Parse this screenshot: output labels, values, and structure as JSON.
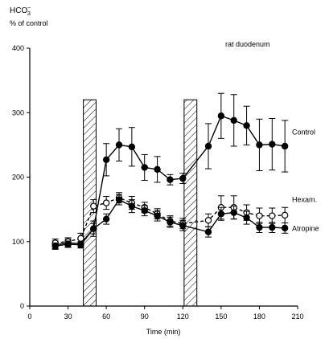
{
  "chart_data": {
    "type": "line",
    "ylabel_main": "HCO",
    "ylabel_sub": "3",
    "ylabel_sup": "−",
    "ylabel_line2": "% of control",
    "xlabel": "Time (min)",
    "annotation": "rat duodenum",
    "xlim": [
      0,
      210
    ],
    "ylim": [
      0,
      400
    ],
    "x_ticks": [
      0,
      30,
      60,
      90,
      120,
      150,
      180,
      210
    ],
    "y_ticks": [
      0,
      100,
      200,
      300,
      400
    ],
    "x_tick_labels": [
      "0",
      "30",
      "60",
      "90",
      "120",
      "150",
      "180",
      "210"
    ],
    "y_tick_labels": [
      "0",
      "100",
      "200",
      "300",
      "400"
    ],
    "shaded_intervals": [
      [
        42,
        52
      ],
      [
        121,
        131
      ]
    ],
    "series": [
      {
        "name": "Control",
        "marker": "filled",
        "line": "solid",
        "x": [
          20,
          30,
          40,
          50,
          60,
          70,
          80,
          90,
          100,
          110,
          120,
          140,
          150,
          160,
          170,
          180,
          190,
          200
        ],
        "y": [
          95,
          98,
          97,
          120,
          227,
          250,
          247,
          215,
          212,
          196,
          198,
          248,
          295,
          288,
          280,
          250,
          251,
          248
        ],
        "err": [
          6,
          6,
          6,
          12,
          25,
          25,
          30,
          20,
          20,
          8,
          8,
          35,
          35,
          40,
          30,
          40,
          40,
          40
        ]
      },
      {
        "name": "Hexam.",
        "marker": "open",
        "line": "dashed",
        "x": [
          20,
          30,
          40,
          50,
          60,
          70,
          80,
          90,
          100,
          110,
          120,
          140,
          150,
          160,
          170,
          180,
          190,
          200
        ],
        "y": [
          98,
          100,
          105,
          155,
          160,
          168,
          160,
          153,
          143,
          132,
          128,
          133,
          153,
          153,
          145,
          140,
          140,
          141
        ],
        "err": [
          6,
          6,
          8,
          10,
          10,
          8,
          10,
          8,
          8,
          8,
          8,
          10,
          18,
          18,
          12,
          12,
          12,
          12
        ]
      },
      {
        "name": "Atropine",
        "marker": "filled",
        "line": "solid",
        "x": [
          20,
          30,
          40,
          50,
          60,
          70,
          80,
          90,
          100,
          110,
          120,
          140,
          150,
          160,
          170,
          180,
          190,
          200
        ],
        "y": [
          93,
          96,
          95,
          120,
          135,
          165,
          155,
          148,
          140,
          130,
          125,
          115,
          143,
          145,
          137,
          122,
          122,
          121
        ],
        "err": [
          5,
          5,
          5,
          8,
          8,
          8,
          10,
          8,
          8,
          8,
          8,
          8,
          10,
          10,
          10,
          8,
          8,
          8
        ]
      }
    ]
  }
}
